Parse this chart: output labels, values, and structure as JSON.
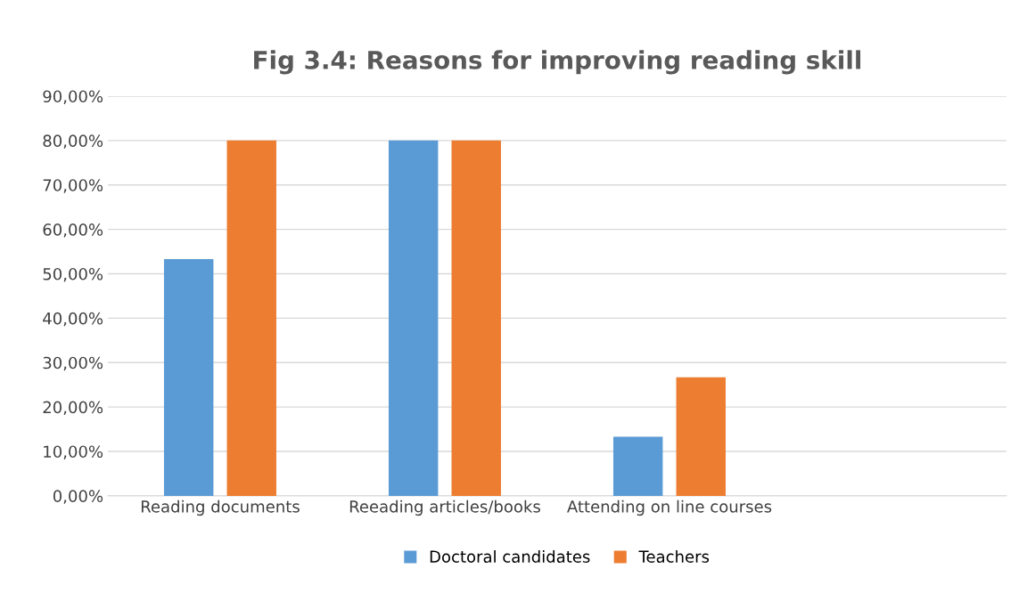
{
  "chart_data": {
    "type": "bar",
    "title": "Fig 3.4: Reasons for improving reading skill",
    "categories": [
      "Reading documents",
      "Reeading articles/books",
      "Attending on line courses",
      null
    ],
    "series": [
      {
        "name": "Doctoral candidates",
        "color": "#5b9bd5",
        "values": [
          53.3,
          80,
          13.3,
          null
        ]
      },
      {
        "name": "Teachers",
        "color": "#ed7d31",
        "values": [
          80,
          80,
          26.7,
          null
        ]
      }
    ],
    "ylim": [
      0,
      90
    ],
    "yticks": [
      {
        "value": 0,
        "label": "0,00%"
      },
      {
        "value": 10,
        "label": "10,00%"
      },
      {
        "value": 20,
        "label": "20,00%"
      },
      {
        "value": 30,
        "label": "30,00%"
      },
      {
        "value": 40,
        "label": "40,00%"
      },
      {
        "value": 50,
        "label": "50,00%"
      },
      {
        "value": 60,
        "label": "60,00%"
      },
      {
        "value": 70,
        "label": "70,00%"
      },
      {
        "value": 80,
        "label": "80,00%"
      },
      {
        "value": 90,
        "label": "90,00%"
      }
    ],
    "grid": "y",
    "legend": "bottom"
  }
}
